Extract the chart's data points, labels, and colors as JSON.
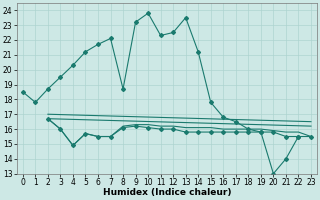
{
  "main_line_x": [
    0,
    1,
    2,
    3,
    4,
    5,
    6,
    7,
    8,
    9,
    10,
    11,
    12,
    13,
    14,
    15,
    16,
    17,
    18,
    19,
    20,
    21,
    22,
    23
  ],
  "main_line_y": [
    18.5,
    17.8,
    18.7,
    19.5,
    20.3,
    21.2,
    21.7,
    22.1,
    18.7,
    23.2,
    23.8,
    22.3,
    22.5,
    23.5,
    21.2,
    17.8,
    16.8,
    16.5,
    16.0,
    15.8,
    13.0,
    14.0,
    15.5,
    null
  ],
  "line2_x": [
    2,
    3,
    4,
    5,
    6,
    7,
    8,
    9,
    10,
    11,
    12,
    13,
    14,
    15,
    16,
    17,
    18,
    19,
    20,
    21,
    22,
    23
  ],
  "line2_y": [
    16.7,
    16.0,
    14.9,
    15.7,
    15.5,
    15.5,
    16.1,
    16.2,
    16.1,
    16.0,
    16.0,
    15.8,
    15.8,
    15.8,
    15.8,
    15.8,
    15.8,
    15.8,
    15.8,
    15.5,
    15.5,
    15.5
  ],
  "line3_x": [
    2,
    3,
    4,
    5,
    6,
    7,
    8,
    9,
    10,
    11,
    12,
    13,
    14,
    15,
    16,
    17,
    18,
    19,
    20,
    21,
    22,
    23
  ],
  "line3_y": [
    16.7,
    16.0,
    14.9,
    15.7,
    15.5,
    15.5,
    16.2,
    16.3,
    16.3,
    16.2,
    16.2,
    16.1,
    16.1,
    16.1,
    16.0,
    16.0,
    16.0,
    16.0,
    15.9,
    15.8,
    15.8,
    15.5
  ],
  "line4_x": [
    2,
    23
  ],
  "line4_y": [
    16.7,
    16.2
  ],
  "line5_x": [
    2,
    23
  ],
  "line5_y": [
    17.0,
    16.5
  ],
  "line_color": "#1a7a6e",
  "bg_color": "#cde8e5",
  "grid_color": "#aed4d0",
  "xlabel": "Humidex (Indice chaleur)",
  "xlim": [
    -0.5,
    23.5
  ],
  "ylim": [
    13,
    24.5
  ],
  "yticks": [
    13,
    14,
    15,
    16,
    17,
    18,
    19,
    20,
    21,
    22,
    23,
    24
  ],
  "xticks": [
    0,
    1,
    2,
    3,
    4,
    5,
    6,
    7,
    8,
    9,
    10,
    11,
    12,
    13,
    14,
    15,
    16,
    17,
    18,
    19,
    20,
    21,
    22,
    23
  ],
  "tick_fontsize": 5.5,
  "xlabel_fontsize": 6.5
}
